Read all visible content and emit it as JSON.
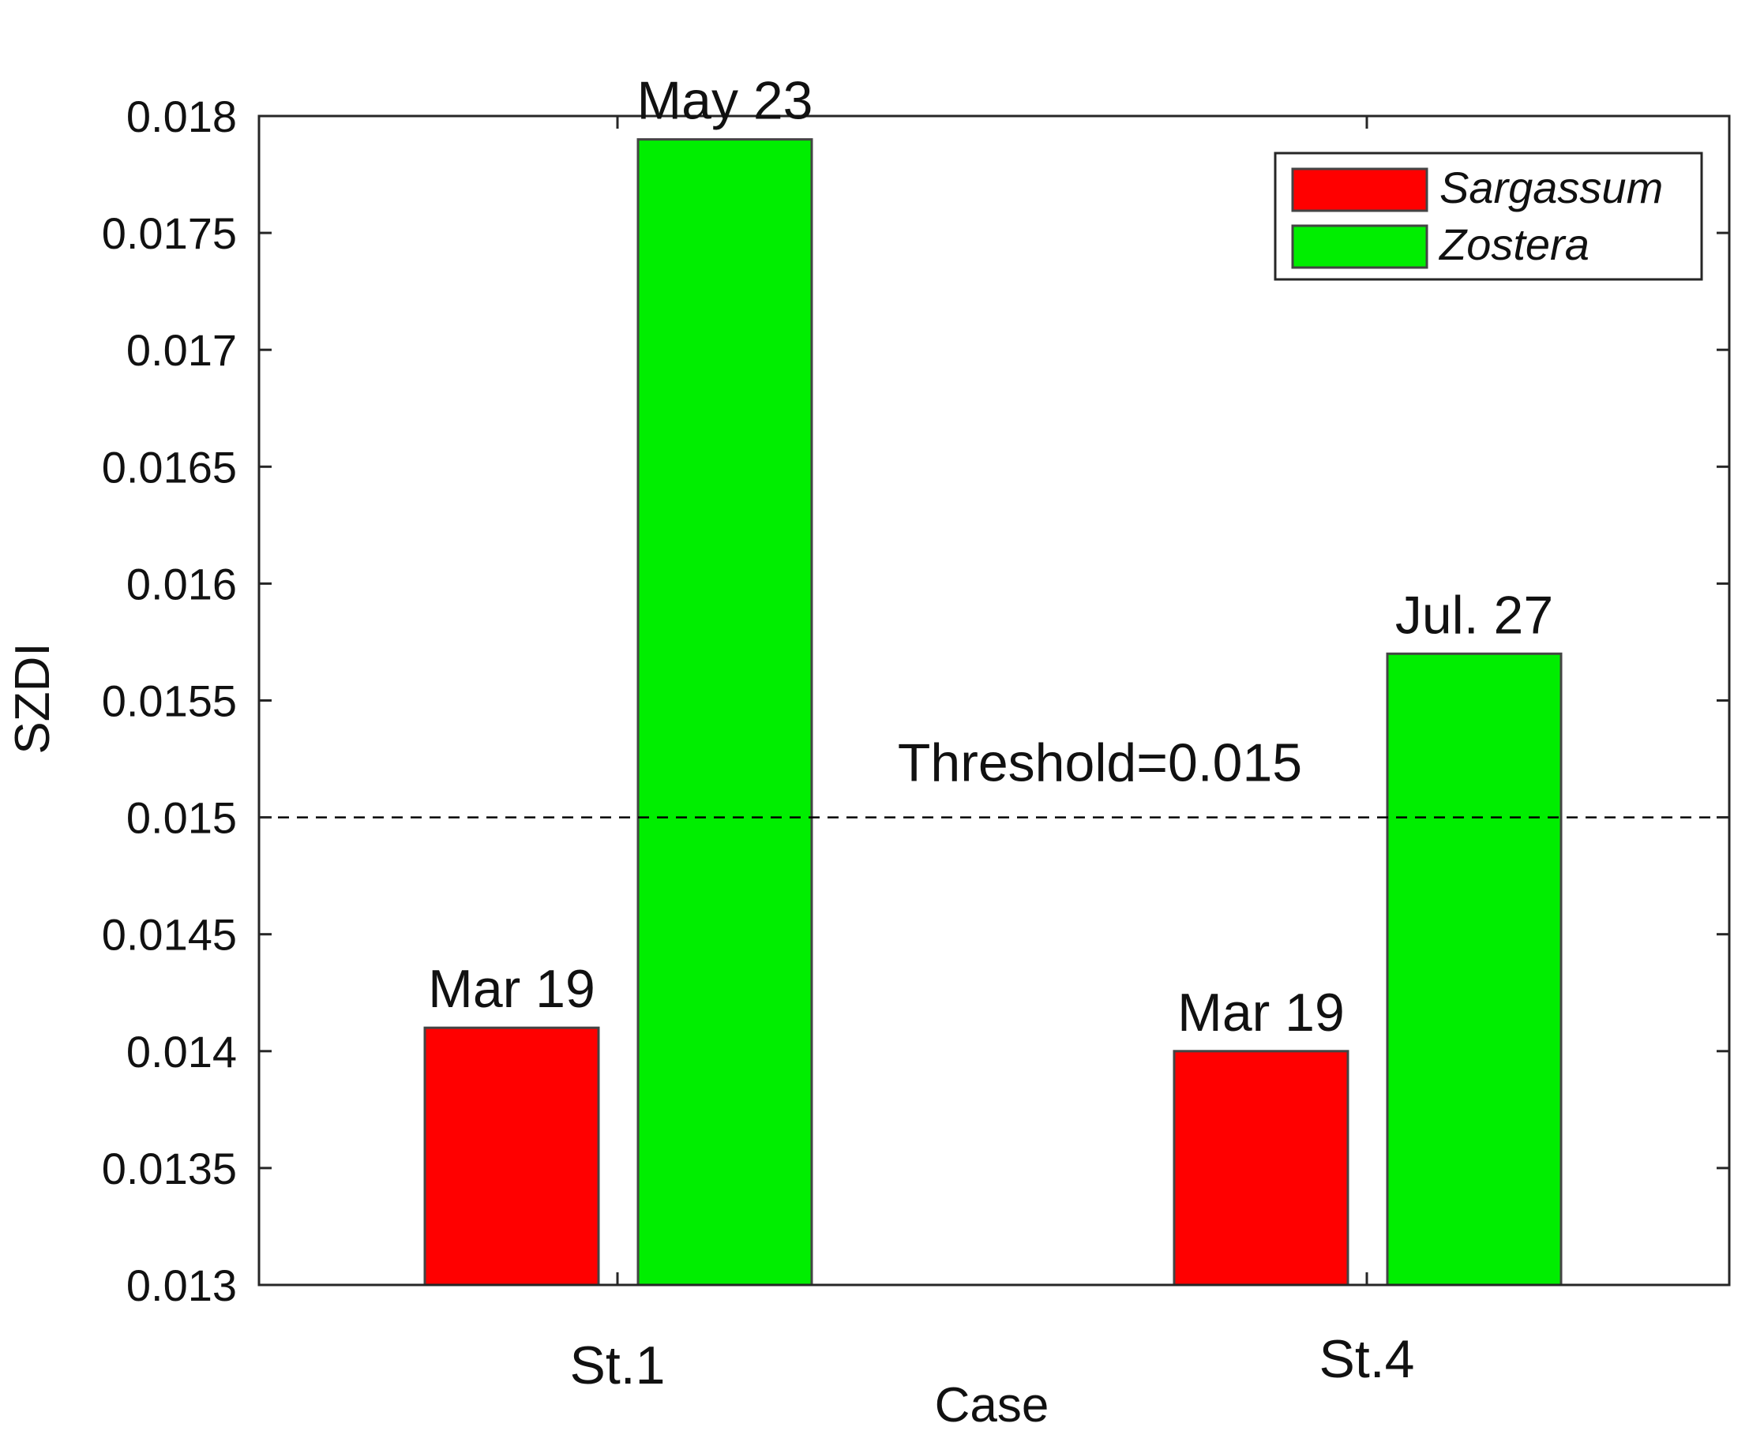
{
  "chart_data": {
    "type": "bar",
    "title": "",
    "xlabel": "Case",
    "ylabel": "SZDI",
    "categories": [
      "St.1",
      "St.4"
    ],
    "ylim": [
      0.013,
      0.018
    ],
    "yticks": [
      "0.013",
      "0.0135",
      "0.014",
      "0.0145",
      "0.015",
      "0.0155",
      "0.016",
      "0.0165",
      "0.017",
      "0.0175",
      "0.018"
    ],
    "series": [
      {
        "name": "Sargassum",
        "color": "#ff0000",
        "values": [
          0.0141,
          0.014
        ],
        "labels": [
          "Mar 19",
          "Mar 19"
        ]
      },
      {
        "name": "Zostera",
        "color": "#00ee00",
        "values": [
          0.0179,
          0.0157
        ],
        "labels": [
          "May 23",
          "Jul. 27"
        ]
      }
    ],
    "threshold": {
      "value": 0.015,
      "label": "Threshold=0.015",
      "style": "dashed"
    },
    "legend": {
      "position": "top-right",
      "italic": true
    },
    "grid": false
  }
}
